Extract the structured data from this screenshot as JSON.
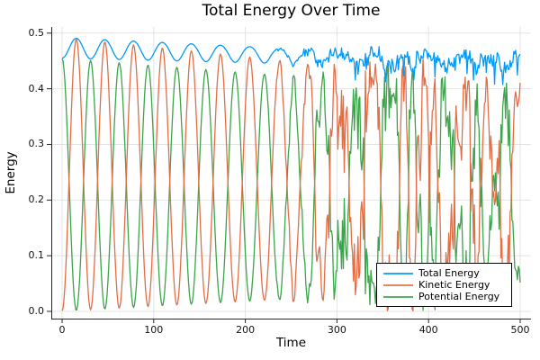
{
  "chart_data": {
    "type": "line",
    "title": "Total Energy Over Time",
    "xlabel": "Time",
    "ylabel": "Energy",
    "xlim": [
      -11.8,
      511.8
    ],
    "ylim": [
      -0.013,
      0.511
    ],
    "x_ticks": [
      0,
      100,
      200,
      300,
      400,
      500
    ],
    "x_tick_labels": [
      "0",
      "100",
      "200",
      "300",
      "400",
      "500"
    ],
    "y_ticks": [
      0.0,
      0.1,
      0.2,
      0.3,
      0.4,
      0.5
    ],
    "y_tick_labels": [
      "0.0",
      "0.1",
      "0.2",
      "0.3",
      "0.4",
      "0.5"
    ],
    "grid": true,
    "legend_position": "bottom-right",
    "grid_color": "#E3E3E3",
    "axis_color": "#262626",
    "text_color": "#000000",
    "series": [
      {
        "name": "Total Energy",
        "color": "#009AF9"
      },
      {
        "name": "Kinetic Energy",
        "color": "#E26E46"
      },
      {
        "name": "Potential Energy",
        "color": "#3CA44A"
      }
    ],
    "description": "Energy-exchange oscillation: kinetic and potential energy swap in antiphase with period ~31 time units; amplitude envelope decays (kinetic peaks 0.49 at t=15 down to ~0.41 by t=500, valleys rising 0 to ~0.05); total energy ripples between ~0.455 and ~0.49, drifting to ~0.44-0.47; all three become noisy/chaotic after t~230-330.",
    "generator": {
      "seed": 1337,
      "t_start": 0,
      "t_end": 500,
      "dt": 1,
      "period": 31,
      "period_drift": 0.005,
      "kin_peak_start": 0.492,
      "kin_peak_slope": -0.00017,
      "kin_valley_start": 0.0,
      "kin_valley_slope": 9e-05,
      "total_max_start": 0.492,
      "total_max_slope": -4e-05,
      "total_min_start": 0.455,
      "total_min_slope": -4e-05,
      "top_notch": 0.012,
      "top_notch_ramp": 300,
      "noise_onset": 225,
      "noise_full": 330,
      "phase_jitter": 0.55,
      "phase_decay": 0.9,
      "kinetic_jitter": 0.04,
      "total_jitter": 0.012,
      "spike_prob": 0.12,
      "spike_amp": 0.035,
      "line_width": 1.3
    }
  }
}
